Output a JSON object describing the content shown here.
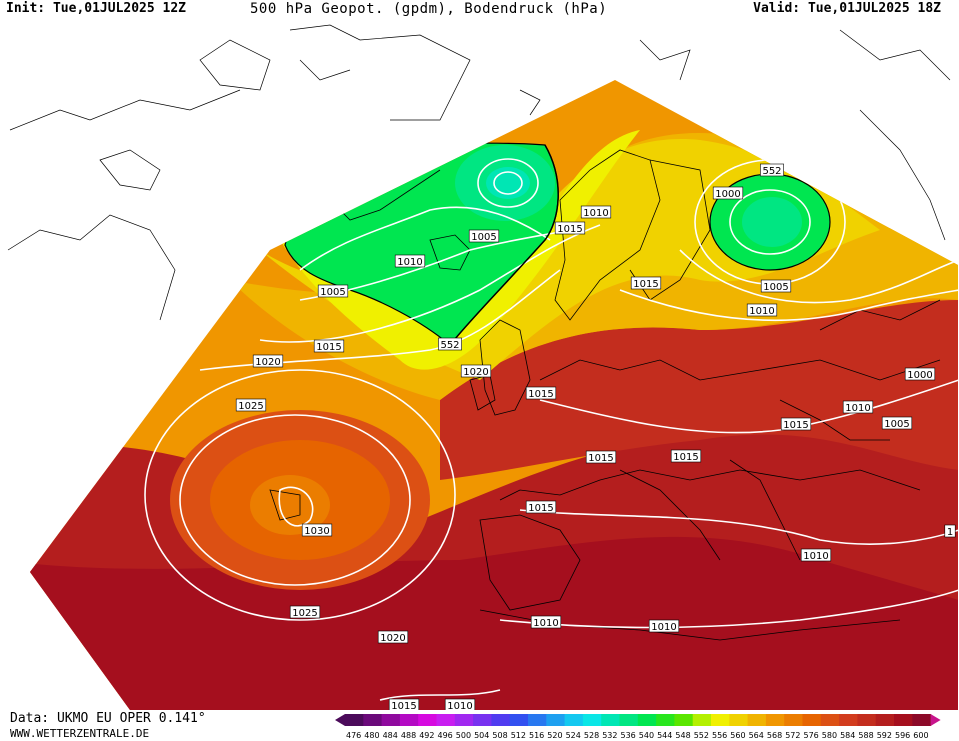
{
  "header": {
    "init": "Init: Tue,01JUL2025 12Z",
    "title": "500 hPa Geopot. (gpdm), Bodendruck (hPa)",
    "valid": "Valid: Tue,01JUL2025 18Z"
  },
  "footer": {
    "data_source": "Data: UKMO EU OPER 0.141°",
    "website": "WWW.WETTERZENTRALE.DE"
  },
  "legend": {
    "values": [
      476,
      480,
      484,
      488,
      492,
      496,
      500,
      504,
      508,
      512,
      516,
      520,
      524,
      528,
      532,
      536,
      540,
      544,
      548,
      552,
      556,
      560,
      564,
      568,
      572,
      576,
      580,
      584,
      588,
      592,
      596,
      600
    ],
    "colors": [
      "#4b0b5a",
      "#6a0a7a",
      "#8f0a9e",
      "#b40ac4",
      "#d60ae0",
      "#c81ef0",
      "#a028f0",
      "#7832f0",
      "#503cf0",
      "#3250f0",
      "#2878f0",
      "#1ea0f0",
      "#14c8f0",
      "#0ae6e6",
      "#00e6b4",
      "#00e682",
      "#00e650",
      "#28e61e",
      "#5ae600",
      "#b4f000",
      "#f0f000",
      "#f0d200",
      "#f0b400",
      "#f09600",
      "#eb7d00",
      "#e66400",
      "#dc5014",
      "#d23c1e",
      "#c32d1e",
      "#b41e1e",
      "#a50f1e",
      "#8c0a28"
    ]
  },
  "isobar_labels": [
    {
      "text": "1005"
    },
    {
      "text": "1010"
    },
    {
      "text": "1005"
    },
    {
      "text": "1015"
    },
    {
      "text": "1010"
    },
    {
      "text": "1000"
    },
    {
      "text": "552"
    },
    {
      "text": "1015"
    },
    {
      "text": "1005"
    },
    {
      "text": "1010"
    },
    {
      "text": "552"
    },
    {
      "text": "1015"
    },
    {
      "text": "1020"
    },
    {
      "text": "1020"
    },
    {
      "text": "1025"
    },
    {
      "text": "1015"
    },
    {
      "text": "1015"
    },
    {
      "text": "1015"
    },
    {
      "text": "1015"
    },
    {
      "text": "1000"
    },
    {
      "text": "1010"
    },
    {
      "text": "1005"
    },
    {
      "text": "1030"
    },
    {
      "text": "1015"
    },
    {
      "text": "1010"
    },
    {
      "text": "1025"
    },
    {
      "text": "1020"
    },
    {
      "text": "1010"
    },
    {
      "text": "1010"
    },
    {
      "text": "1015"
    },
    {
      "text": "1010"
    },
    {
      "text": "1"
    }
  ],
  "colors": {
    "low_green": "#00e650",
    "mid_green": "#28e61e",
    "yellow": "#f0f000",
    "orange": "#f09600",
    "red": "#c32d1e",
    "dark_red": "#a50f1e"
  }
}
